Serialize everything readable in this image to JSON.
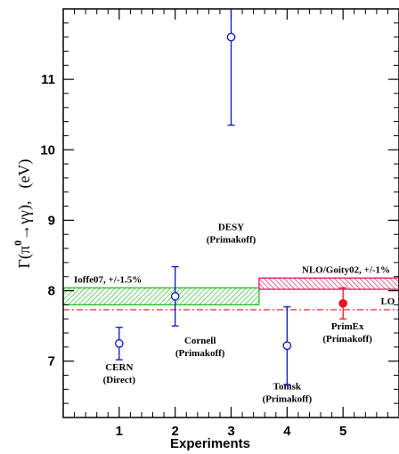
{
  "chart_data": {
    "type": "scatter",
    "title": "",
    "xlabel": "Experiments",
    "ylabel": {
      "prefix": "Γ(π",
      "sup": "0",
      "suffix": "→γγ),",
      "unit": "(eV)"
    },
    "xlim": [
      0,
      6
    ],
    "ylim": [
      6.2,
      12.0
    ],
    "x_ticks": [
      {
        "value": 1,
        "label": "1",
        "color": "#000000"
      },
      {
        "value": 2,
        "label": "2",
        "color": "#000000"
      },
      {
        "value": 3,
        "label": "3",
        "color": "#000000"
      },
      {
        "value": 4,
        "label": "4",
        "color": "#000000"
      },
      {
        "value": 5,
        "label": "5",
        "color": "#e8141e"
      }
    ],
    "y_ticks": [
      {
        "value": 7,
        "label": "7"
      },
      {
        "value": 8,
        "label": "8"
      },
      {
        "value": 9,
        "label": "9"
      },
      {
        "value": 10,
        "label": "10"
      },
      {
        "value": 11,
        "label": "11"
      }
    ],
    "points": [
      {
        "x": 1,
        "y": 7.25,
        "err": 0.23,
        "label": [
          "CERN",
          "(Direct)"
        ],
        "filled": false,
        "color": "#0a14c8"
      },
      {
        "x": 2,
        "y": 7.92,
        "err": 0.42,
        "label": [
          "Cornell",
          "(Primakoff)"
        ],
        "filled": false,
        "color": "#0a14c8"
      },
      {
        "x": 3,
        "y": 11.6,
        "err": 1.25,
        "label": [
          "DESY",
          "(Primakoff)"
        ],
        "filled": false,
        "color": "#0a14c8"
      },
      {
        "x": 4,
        "y": 7.22,
        "err": 0.55,
        "label": [
          "Tomsk",
          "(Primakoff)"
        ],
        "filled": false,
        "color": "#0a14c8"
      },
      {
        "x": 5,
        "y": 7.82,
        "err": 0.22,
        "label": [
          "PrimEx",
          "(Primakoff)"
        ],
        "filled": true,
        "color": "#e8141e"
      }
    ],
    "bands": [
      {
        "name": "Ioffe07, +/-1.5%",
        "x_range": [
          0,
          3.5
        ],
        "y_range": [
          7.8,
          8.04
        ],
        "color": "#22bb22"
      },
      {
        "name": "NLO/Goity02, +/-1%",
        "x_range": [
          3.5,
          6
        ],
        "y_range": [
          8.02,
          8.18
        ],
        "color": "#e0105a"
      }
    ],
    "lines": [
      {
        "name": "LO",
        "y": 7.73,
        "color": "#e8141e",
        "style": "dash-dot"
      }
    ]
  }
}
